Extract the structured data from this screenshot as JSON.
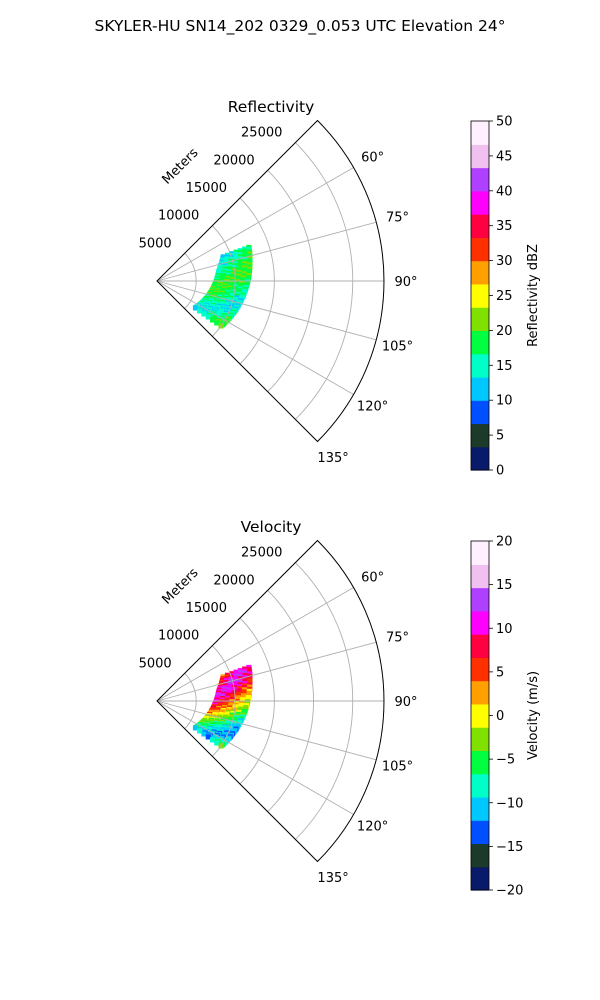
{
  "figure": {
    "suptitle": "SKYLER-HU  SN14_202  0329_0.053 UTC Elevation 24°"
  },
  "chart_data": [
    {
      "type": "heatmap",
      "projection": "polar-sector",
      "title": "Reflectivity",
      "radial_label": "Meters",
      "r_ticks": [
        "5000",
        "10000",
        "15000",
        "20000",
        "25000"
      ],
      "r_range": [
        0,
        29000
      ],
      "theta_ticks": [
        "60°",
        "75°",
        "90°",
        "105°",
        "120°",
        "135°"
      ],
      "theta_range_deg": [
        45,
        135
      ],
      "grid": true,
      "colorbar": {
        "label": "Reflectivity dBZ",
        "range": [
          0,
          50
        ],
        "ticks": [
          "0",
          "5",
          "10",
          "15",
          "20",
          "25",
          "30",
          "35",
          "40",
          "45",
          "50"
        ],
        "colormap": [
          "#0a1a6b",
          "#1b3a2a",
          "#0050ff",
          "#00c8ff",
          "#00ffc8",
          "#00ff40",
          "#80e000",
          "#ffff00",
          "#ffa000",
          "#ff3000",
          "#ff0040",
          "#ff00ff",
          "#b040ff",
          "#f0c0f0",
          "#fff0ff"
        ]
      },
      "echo_band": {
        "az_start": 70,
        "az_end": 125,
        "inner_r": [
          9000,
          8000,
          7500,
          7000,
          6500,
          6000
        ],
        "outer_r": [
          12500,
          12000,
          11500,
          11000,
          10500,
          10000
        ],
        "values": [
          12,
          14,
          16,
          18,
          20,
          19,
          17,
          15,
          13,
          16,
          21,
          18
        ]
      }
    },
    {
      "type": "heatmap",
      "projection": "polar-sector",
      "title": "Velocity",
      "radial_label": "Meters",
      "r_ticks": [
        "5000",
        "10000",
        "15000",
        "20000",
        "25000"
      ],
      "r_range": [
        0,
        29000
      ],
      "theta_ticks": [
        "60°",
        "75°",
        "90°",
        "105°",
        "120°",
        "135°"
      ],
      "theta_range_deg": [
        45,
        135
      ],
      "grid": true,
      "colorbar": {
        "label": "Velocity (m/s)",
        "range": [
          -20,
          20
        ],
        "ticks": [
          "−20",
          "−15",
          "−10",
          "−5",
          "0",
          "5",
          "10",
          "15",
          "20"
        ],
        "colormap": [
          "#0a1a6b",
          "#1b3a2a",
          "#0050ff",
          "#00c8ff",
          "#00ffc8",
          "#00ff40",
          "#80e000",
          "#ffff00",
          "#ffa000",
          "#ff3000",
          "#ff0040",
          "#ff00ff",
          "#b040ff",
          "#f0c0f0",
          "#fff0ff"
        ]
      },
      "echo_band": {
        "az_start": 70,
        "az_end": 125,
        "inner_r": [
          9000,
          8000,
          7500,
          7000,
          6500,
          6000
        ],
        "outer_r": [
          12500,
          12000,
          11500,
          11000,
          10500,
          10000
        ],
        "values": [
          4,
          8,
          12,
          10,
          6,
          2,
          -2,
          -6,
          -10,
          -12,
          -8,
          0
        ]
      }
    }
  ]
}
